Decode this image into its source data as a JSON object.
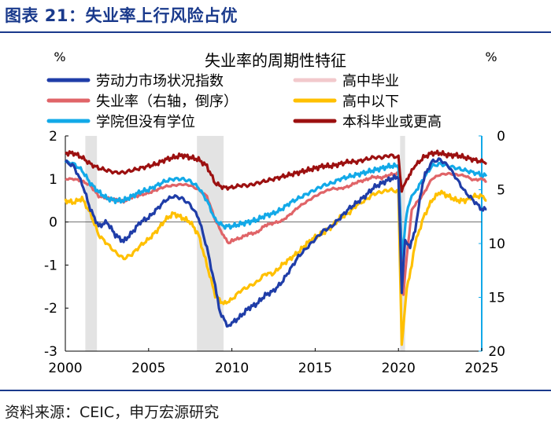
{
  "header": {
    "title": "图表 21：失业率上行风险占优"
  },
  "footer": {
    "source": "资料来源：CEIC，申万宏源研究"
  },
  "colors": {
    "title": "#1a3a8c",
    "series": [
      "#1f3da8",
      "#f2c9cc",
      "#e06468",
      "#ffc000",
      "#12a9e8",
      "#9c1010"
    ],
    "left_axis": "#000000",
    "right_axis": "#12a9e8",
    "recession_band": "#d0d0d0"
  },
  "chart_data": {
    "type": "line",
    "title": "失业率的周期性特征",
    "left_axis_unit": "%",
    "right_axis_unit": "%",
    "left_axis": {
      "min": -3,
      "max": 2,
      "ticks": [
        2,
        1,
        0,
        -1,
        -2,
        -3
      ]
    },
    "right_axis": {
      "min": 0,
      "max": 20,
      "inverted": true,
      "ticks": [
        0,
        5,
        10,
        15,
        20
      ]
    },
    "x_axis": {
      "min": 2000,
      "max": 2025,
      "ticks": [
        2000,
        2005,
        2010,
        2015,
        2020,
        2025
      ]
    },
    "recessions": [
      [
        2001.2,
        2001.9
      ],
      [
        2007.9,
        2009.5
      ],
      [
        2020.1,
        2020.4
      ]
    ],
    "legend": [
      "劳动力市场状况指数",
      "高中毕业",
      "失业率（右轴，倒序）",
      "高中以下",
      "学院但没有学位",
      "本科毕业或更高"
    ],
    "series": [
      {
        "name": "劳动力市场状况指数",
        "axis": "left",
        "points": [
          [
            2000,
            1.4
          ],
          [
            2000.5,
            1.3
          ],
          [
            2001,
            0.9
          ],
          [
            2001.5,
            0.3
          ],
          [
            2002,
            -0.1
          ],
          [
            2002.5,
            0.0
          ],
          [
            2003,
            -0.3
          ],
          [
            2003.5,
            -0.45
          ],
          [
            2004,
            -0.25
          ],
          [
            2004.5,
            0.0
          ],
          [
            2005,
            0.1
          ],
          [
            2005.5,
            0.3
          ],
          [
            2006,
            0.5
          ],
          [
            2006.5,
            0.6
          ],
          [
            2007,
            0.55
          ],
          [
            2007.5,
            0.4
          ],
          [
            2008,
            0.1
          ],
          [
            2008.5,
            -0.6
          ],
          [
            2009,
            -1.5
          ],
          [
            2009.3,
            -2.1
          ],
          [
            2009.7,
            -2.4
          ],
          [
            2010,
            -2.35
          ],
          [
            2010.5,
            -2.2
          ],
          [
            2011,
            -2.0
          ],
          [
            2011.5,
            -1.9
          ],
          [
            2012,
            -1.7
          ],
          [
            2012.5,
            -1.6
          ],
          [
            2013,
            -1.4
          ],
          [
            2013.5,
            -1.1
          ],
          [
            2014,
            -0.8
          ],
          [
            2014.5,
            -0.6
          ],
          [
            2015,
            -0.4
          ],
          [
            2015.5,
            -0.2
          ],
          [
            2016,
            -0.1
          ],
          [
            2016.5,
            0.1
          ],
          [
            2017,
            0.3
          ],
          [
            2017.5,
            0.45
          ],
          [
            2018,
            0.6
          ],
          [
            2018.5,
            0.8
          ],
          [
            2019,
            0.9
          ],
          [
            2019.5,
            1.0
          ],
          [
            2020,
            1.05
          ],
          [
            2020.2,
            -1.6
          ],
          [
            2020.4,
            -0.4
          ],
          [
            2020.7,
            -0.6
          ],
          [
            2021,
            -0.2
          ],
          [
            2021.3,
            0.6
          ],
          [
            2021.6,
            1.1
          ],
          [
            2022,
            1.4
          ],
          [
            2022.5,
            1.45
          ],
          [
            2023,
            1.3
          ],
          [
            2023.5,
            1.0
          ],
          [
            2024,
            0.7
          ],
          [
            2024.5,
            0.5
          ],
          [
            2025,
            0.3
          ],
          [
            2025.3,
            0.3
          ]
        ]
      },
      {
        "name": "高中毕业",
        "axis": "left",
        "points": []
      },
      {
        "name": "失业率（右轴，倒序）",
        "axis": "right",
        "points": [
          [
            2000,
            4.0
          ],
          [
            2000.5,
            4.0
          ],
          [
            2001,
            4.2
          ],
          [
            2001.5,
            4.6
          ],
          [
            2002,
            5.6
          ],
          [
            2002.5,
            5.8
          ],
          [
            2003,
            5.9
          ],
          [
            2003.5,
            6.1
          ],
          [
            2004,
            5.7
          ],
          [
            2004.5,
            5.5
          ],
          [
            2005,
            5.3
          ],
          [
            2005.5,
            5.0
          ],
          [
            2006,
            4.7
          ],
          [
            2006.5,
            4.6
          ],
          [
            2007,
            4.5
          ],
          [
            2007.5,
            4.6
          ],
          [
            2008,
            5.0
          ],
          [
            2008.5,
            5.6
          ],
          [
            2009,
            7.8
          ],
          [
            2009.5,
            9.3
          ],
          [
            2009.8,
            10.0
          ],
          [
            2010,
            9.7
          ],
          [
            2010.5,
            9.5
          ],
          [
            2011,
            9.1
          ],
          [
            2011.5,
            9.0
          ],
          [
            2012,
            8.3
          ],
          [
            2012.5,
            8.1
          ],
          [
            2013,
            7.9
          ],
          [
            2013.5,
            7.3
          ],
          [
            2014,
            6.6
          ],
          [
            2014.5,
            6.1
          ],
          [
            2015,
            5.6
          ],
          [
            2015.5,
            5.2
          ],
          [
            2016,
            4.9
          ],
          [
            2016.5,
            4.9
          ],
          [
            2017,
            4.7
          ],
          [
            2017.5,
            4.3
          ],
          [
            2018,
            4.1
          ],
          [
            2018.5,
            3.8
          ],
          [
            2019,
            3.9
          ],
          [
            2019.5,
            3.6
          ],
          [
            2020,
            3.5
          ],
          [
            2020.3,
            14.7
          ],
          [
            2020.5,
            11.1
          ],
          [
            2020.8,
            6.9
          ],
          [
            2021,
            6.4
          ],
          [
            2021.5,
            5.4
          ],
          [
            2022,
            4.0
          ],
          [
            2022.5,
            3.6
          ],
          [
            2023,
            3.5
          ],
          [
            2023.5,
            3.6
          ],
          [
            2024,
            3.7
          ],
          [
            2024.5,
            4.1
          ],
          [
            2025,
            4.0
          ],
          [
            2025.3,
            4.2
          ]
        ]
      },
      {
        "name": "高中以下",
        "axis": "left",
        "points": [
          [
            2000,
            0.5
          ],
          [
            2000.5,
            0.45
          ],
          [
            2001,
            0.55
          ],
          [
            2001.5,
            0.2
          ],
          [
            2002,
            -0.3
          ],
          [
            2002.5,
            -0.5
          ],
          [
            2003,
            -0.7
          ],
          [
            2003.5,
            -0.85
          ],
          [
            2004,
            -0.75
          ],
          [
            2004.5,
            -0.55
          ],
          [
            2005,
            -0.4
          ],
          [
            2005.5,
            -0.2
          ],
          [
            2006,
            0.05
          ],
          [
            2006.5,
            0.2
          ],
          [
            2007,
            0.1
          ],
          [
            2007.5,
            0.0
          ],
          [
            2008,
            -0.3
          ],
          [
            2008.5,
            -1.0
          ],
          [
            2009,
            -1.7
          ],
          [
            2009.5,
            -1.9
          ],
          [
            2010,
            -1.8
          ],
          [
            2010.5,
            -1.6
          ],
          [
            2011,
            -1.5
          ],
          [
            2011.5,
            -1.4
          ],
          [
            2012,
            -1.2
          ],
          [
            2012.5,
            -1.2
          ],
          [
            2013,
            -1.0
          ],
          [
            2013.5,
            -0.85
          ],
          [
            2014,
            -0.7
          ],
          [
            2014.5,
            -0.5
          ],
          [
            2015,
            -0.35
          ],
          [
            2015.5,
            -0.25
          ],
          [
            2016,
            -0.1
          ],
          [
            2016.5,
            0.1
          ],
          [
            2017,
            0.2
          ],
          [
            2017.5,
            0.4
          ],
          [
            2018,
            0.5
          ],
          [
            2018.5,
            0.65
          ],
          [
            2019,
            0.7
          ],
          [
            2019.5,
            0.75
          ],
          [
            2020,
            0.7
          ],
          [
            2020.2,
            -2.9
          ],
          [
            2020.5,
            -1.5
          ],
          [
            2020.8,
            -1.0
          ],
          [
            2021,
            -0.5
          ],
          [
            2021.5,
            0.1
          ],
          [
            2022,
            0.5
          ],
          [
            2022.5,
            0.7
          ],
          [
            2023,
            0.6
          ],
          [
            2023.5,
            0.5
          ],
          [
            2024,
            0.5
          ],
          [
            2024.5,
            0.6
          ],
          [
            2025,
            0.6
          ],
          [
            2025.3,
            0.5
          ]
        ]
      },
      {
        "name": "学院但没有学位",
        "axis": "left",
        "points": [
          [
            2000,
            1.4
          ],
          [
            2000.5,
            1.35
          ],
          [
            2001,
            1.2
          ],
          [
            2001.5,
            0.9
          ],
          [
            2002,
            0.7
          ],
          [
            2002.5,
            0.55
          ],
          [
            2003,
            0.5
          ],
          [
            2003.5,
            0.5
          ],
          [
            2004,
            0.6
          ],
          [
            2004.5,
            0.7
          ],
          [
            2005,
            0.75
          ],
          [
            2005.5,
            0.85
          ],
          [
            2006,
            0.95
          ],
          [
            2006.5,
            1.0
          ],
          [
            2007,
            1.0
          ],
          [
            2007.5,
            0.95
          ],
          [
            2008,
            0.8
          ],
          [
            2008.5,
            0.5
          ],
          [
            2009,
            0.05
          ],
          [
            2009.5,
            -0.1
          ],
          [
            2010,
            -0.1
          ],
          [
            2010.5,
            -0.05
          ],
          [
            2011,
            0.0
          ],
          [
            2011.5,
            0.05
          ],
          [
            2012,
            0.15
          ],
          [
            2012.5,
            0.2
          ],
          [
            2013,
            0.3
          ],
          [
            2013.5,
            0.45
          ],
          [
            2014,
            0.55
          ],
          [
            2014.5,
            0.65
          ],
          [
            2015,
            0.75
          ],
          [
            2015.5,
            0.85
          ],
          [
            2016,
            0.9
          ],
          [
            2016.5,
            1.0
          ],
          [
            2017,
            1.05
          ],
          [
            2017.5,
            1.1
          ],
          [
            2018,
            1.15
          ],
          [
            2018.5,
            1.2
          ],
          [
            2019,
            1.25
          ],
          [
            2019.5,
            1.3
          ],
          [
            2020,
            1.3
          ],
          [
            2020.2,
            -0.8
          ],
          [
            2020.5,
            0.2
          ],
          [
            2020.8,
            0.6
          ],
          [
            2021,
            0.7
          ],
          [
            2021.5,
            1.0
          ],
          [
            2022,
            1.3
          ],
          [
            2022.5,
            1.35
          ],
          [
            2023,
            1.3
          ],
          [
            2023.5,
            1.25
          ],
          [
            2024,
            1.2
          ],
          [
            2024.5,
            1.15
          ],
          [
            2025,
            1.1
          ],
          [
            2025.3,
            1.1
          ]
        ]
      },
      {
        "name": "本科毕业或更高",
        "axis": "left",
        "points": [
          [
            2000,
            1.6
          ],
          [
            2000.5,
            1.6
          ],
          [
            2001,
            1.5
          ],
          [
            2001.5,
            1.35
          ],
          [
            2002,
            1.25
          ],
          [
            2002.5,
            1.2
          ],
          [
            2003,
            1.15
          ],
          [
            2003.5,
            1.15
          ],
          [
            2004,
            1.2
          ],
          [
            2004.5,
            1.25
          ],
          [
            2005,
            1.3
          ],
          [
            2005.5,
            1.35
          ],
          [
            2006,
            1.45
          ],
          [
            2006.5,
            1.5
          ],
          [
            2007,
            1.55
          ],
          [
            2007.5,
            1.5
          ],
          [
            2008,
            1.45
          ],
          [
            2008.5,
            1.3
          ],
          [
            2009,
            0.9
          ],
          [
            2009.5,
            0.8
          ],
          [
            2010,
            0.8
          ],
          [
            2010.5,
            0.85
          ],
          [
            2011,
            0.85
          ],
          [
            2011.5,
            0.9
          ],
          [
            2012,
            0.95
          ],
          [
            2012.5,
            1.0
          ],
          [
            2013,
            1.05
          ],
          [
            2013.5,
            1.1
          ],
          [
            2014,
            1.15
          ],
          [
            2014.5,
            1.2
          ],
          [
            2015,
            1.25
          ],
          [
            2015.5,
            1.3
          ],
          [
            2016,
            1.3
          ],
          [
            2016.5,
            1.35
          ],
          [
            2017,
            1.4
          ],
          [
            2017.5,
            1.4
          ],
          [
            2018,
            1.45
          ],
          [
            2018.5,
            1.5
          ],
          [
            2019,
            1.5
          ],
          [
            2019.5,
            1.55
          ],
          [
            2020,
            1.5
          ],
          [
            2020.2,
            0.7
          ],
          [
            2020.5,
            1.0
          ],
          [
            2020.8,
            1.2
          ],
          [
            2021,
            1.3
          ],
          [
            2021.5,
            1.5
          ],
          [
            2022,
            1.6
          ],
          [
            2022.5,
            1.6
          ],
          [
            2023,
            1.55
          ],
          [
            2023.5,
            1.55
          ],
          [
            2024,
            1.5
          ],
          [
            2024.5,
            1.45
          ],
          [
            2025,
            1.4
          ],
          [
            2025.3,
            1.35
          ]
        ]
      }
    ]
  }
}
